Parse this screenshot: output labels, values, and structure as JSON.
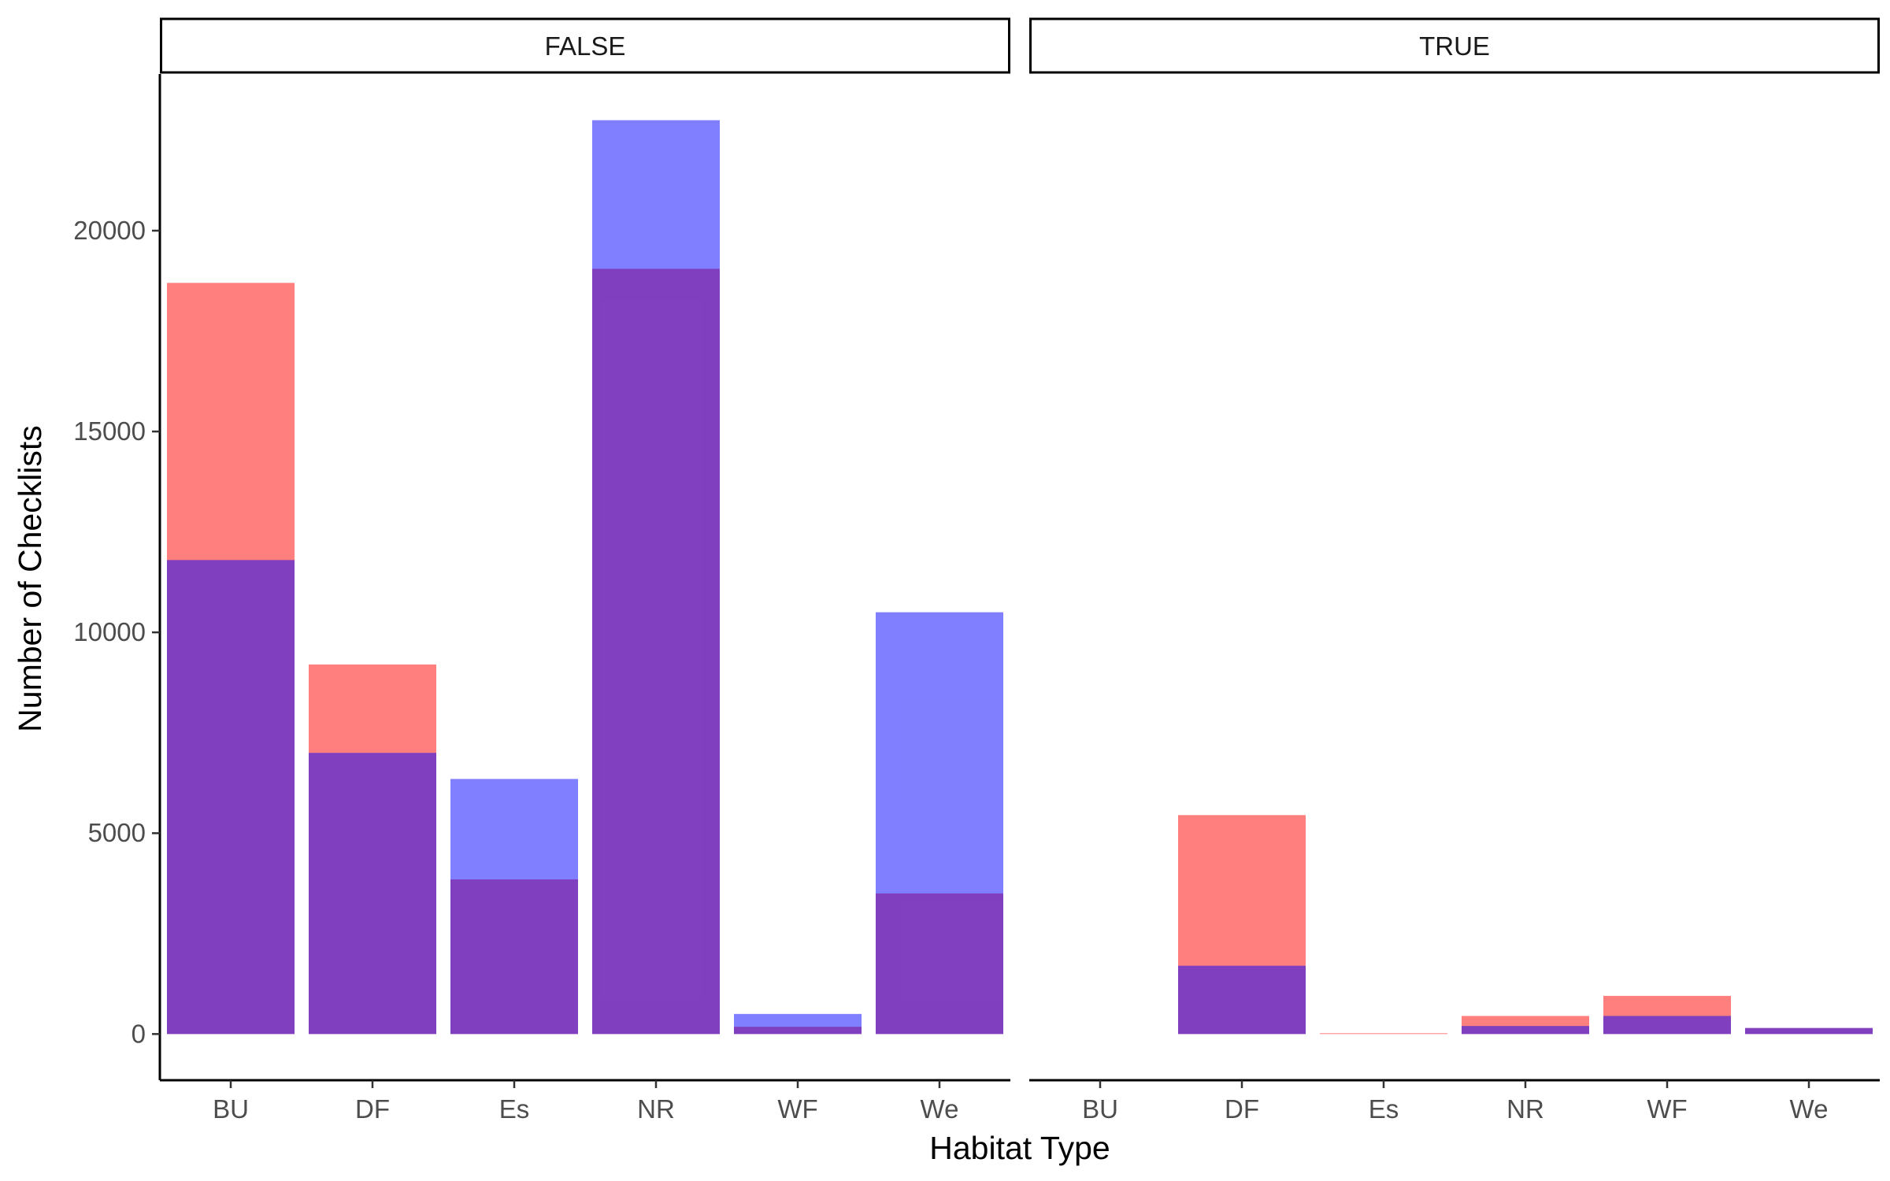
{
  "chart_data": {
    "type": "bar",
    "title": "",
    "xlabel": "Habitat Type",
    "ylabel": "Number of Checklists",
    "ylim": [
      -1150,
      23900
    ],
    "yticks": [
      0,
      5000,
      10000,
      15000,
      20000
    ],
    "categories": [
      "BU",
      "DF",
      "Es",
      "NR",
      "WF",
      "We"
    ],
    "bar_mode": "overlay",
    "legend": "none",
    "grid": false,
    "colors": {
      "series_a": "#ff0000",
      "series_b": "#0000ff",
      "fill_opacity": 0.5,
      "strip_border": "#000000",
      "axis_line": "#000000",
      "tick_text": "#4d4d4d"
    },
    "panels": [
      {
        "strip_label": "FALSE",
        "series": [
          {
            "values": [
              18700,
              9200,
              3850,
              19050,
              180,
              3500
            ]
          },
          {
            "values": [
              11800,
              7000,
              6350,
              22750,
              500,
              10500
            ]
          }
        ]
      },
      {
        "strip_label": "TRUE",
        "series": [
          {
            "values": [
              0,
              5450,
              20,
              450,
              950,
              150
            ]
          },
          {
            "values": [
              0,
              1700,
              0,
              200,
              450,
              150
            ]
          }
        ]
      }
    ]
  }
}
